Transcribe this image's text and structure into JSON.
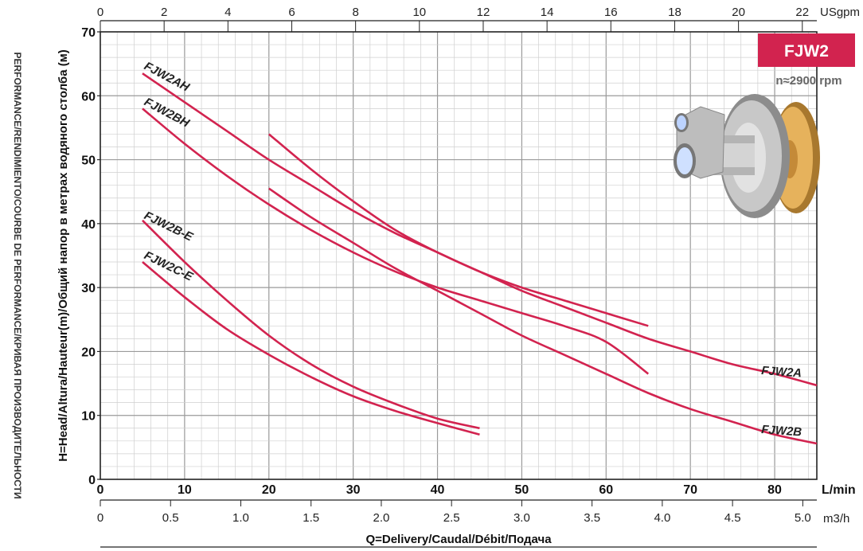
{
  "badge": {
    "model": "FJW2",
    "speed": "n≈2900 rpm",
    "color": "#d2234f"
  },
  "side_label": "PERFORMANCE/RENDIMIENTO/COURBE DE PERFORMANCE/КРИВАЯ ПРОИЗВОДИТЕЛЬНОСТИ",
  "pump_image": "pump-with-impeller-icon",
  "chart_data": {
    "type": "line",
    "title": "",
    "ylabel": "H=Head/Altura/Hauteur(m)/Общий напор в метрах водяного столба (м)",
    "xlabel": "Q=Delivery/Caudal/Débit/Подача",
    "ylim": [
      0,
      70
    ],
    "xlim": [
      0,
      85
    ],
    "grid": true,
    "x_unit_label": "L/min",
    "top_unit_label": "USgpm",
    "bottom_unit_label": "m3/h",
    "y_ticks": [
      "0",
      "10",
      "20",
      "30",
      "40",
      "50",
      "60",
      "70"
    ],
    "x_ticks": [
      {
        "v": 10,
        "t": "10"
      },
      {
        "v": 20,
        "t": "20"
      },
      {
        "v": 30,
        "t": "30"
      },
      {
        "v": 40,
        "t": "40"
      },
      {
        "v": 50,
        "t": "50"
      },
      {
        "v": 60,
        "t": "60"
      },
      {
        "v": 70,
        "t": "70"
      },
      {
        "v": 80,
        "t": "80"
      }
    ],
    "x_zero_label": "0",
    "top_ticks": [
      {
        "v": 0,
        "t": "0"
      },
      {
        "v": 2,
        "t": "2"
      },
      {
        "v": 4,
        "t": "4"
      },
      {
        "v": 6,
        "t": "6"
      },
      {
        "v": 8,
        "t": "8"
      },
      {
        "v": 10,
        "t": "10"
      },
      {
        "v": 12,
        "t": "12"
      },
      {
        "v": 14,
        "t": "14"
      },
      {
        "v": 16,
        "t": "16"
      },
      {
        "v": 18,
        "t": "18"
      },
      {
        "v": 20,
        "t": "20"
      },
      {
        "v": 22,
        "t": "22"
      }
    ],
    "bottom_ticks": [
      {
        "v": 0,
        "t": "0"
      },
      {
        "v": 0.5,
        "t": "0.5"
      },
      {
        "v": 1.0,
        "t": "1.0"
      },
      {
        "v": 1.5,
        "t": "1.5"
      },
      {
        "v": 2.0,
        "t": "2.0"
      },
      {
        "v": 2.5,
        "t": "2.5"
      },
      {
        "v": 3.0,
        "t": "3.0"
      },
      {
        "v": 3.5,
        "t": "3.5"
      },
      {
        "v": 4.0,
        "t": "4.0"
      },
      {
        "v": 4.5,
        "t": "4.5"
      },
      {
        "v": 5.0,
        "t": "5.0"
      }
    ],
    "line_color": "#d2234f",
    "series": [
      {
        "name": "FJW2AH",
        "x": [
          5,
          10,
          15,
          20,
          25,
          30,
          35,
          40,
          45,
          50,
          55,
          60,
          65
        ],
        "y": [
          63.5,
          59,
          54.5,
          50,
          46,
          42,
          38.5,
          35.5,
          32.5,
          30,
          28,
          26,
          24
        ]
      },
      {
        "name": "FJW2BH",
        "x": [
          5,
          10,
          15,
          20,
          25,
          30,
          35,
          40,
          45,
          50,
          55,
          60,
          65
        ],
        "y": [
          58,
          52.5,
          47.5,
          43,
          39,
          35.5,
          32.5,
          30,
          28,
          26,
          24,
          21.5,
          16.5
        ]
      },
      {
        "name": "FJW2B-E",
        "x": [
          5,
          10,
          15,
          20,
          25,
          30,
          35,
          40,
          45
        ],
        "y": [
          40.5,
          34,
          28,
          22.5,
          18,
          14.5,
          11.8,
          9.5,
          8
        ]
      },
      {
        "name": "FJW2C-E",
        "x": [
          5,
          10,
          15,
          20,
          25,
          30,
          35,
          40,
          45
        ],
        "y": [
          34,
          28.5,
          23.5,
          19.5,
          16,
          13,
          10.7,
          8.8,
          7
        ]
      },
      {
        "name": "FJW2A",
        "x": [
          20,
          25,
          30,
          35,
          40,
          45,
          50,
          55,
          60,
          65,
          70,
          75,
          80,
          85
        ],
        "y": [
          54,
          48.5,
          43.5,
          39,
          35.5,
          32.5,
          29.5,
          27,
          24.5,
          22,
          20,
          18,
          16.5,
          14.7
        ]
      },
      {
        "name": "FJW2B",
        "x": [
          20,
          25,
          30,
          35,
          40,
          45,
          50,
          55,
          60,
          65,
          70,
          75,
          80,
          85
        ],
        "y": [
          45.5,
          41,
          37,
          33,
          29.5,
          26,
          22.5,
          19.5,
          16.5,
          13.5,
          11,
          9,
          7,
          5.6
        ]
      }
    ],
    "labels": [
      "FJW2AH",
      "FJW2BH",
      "FJW2B-E",
      "FJW2C-E",
      "FJW2A",
      "FJW2B"
    ]
  }
}
